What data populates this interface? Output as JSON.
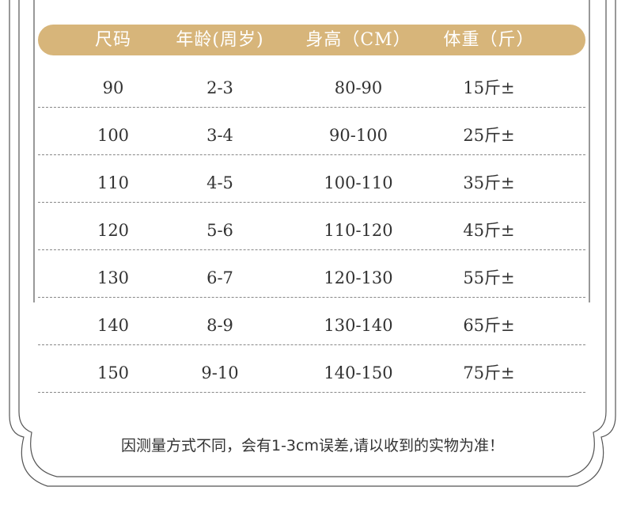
{
  "header": {
    "columns": [
      "尺码",
      "年龄(周岁)",
      "身高（CM）",
      "体重（斤）"
    ],
    "color": "#d7b57a"
  },
  "rows": [
    {
      "size": "90",
      "age": "2-3",
      "height": "80-90",
      "weight": "15斤±"
    },
    {
      "size": "100",
      "age": "3-4",
      "height": "90-100",
      "weight": "25斤±"
    },
    {
      "size": "110",
      "age": "4-5",
      "height": "100-110",
      "weight": "35斤±"
    },
    {
      "size": "120",
      "age": "5-6",
      "height": "110-120",
      "weight": "45斤±"
    },
    {
      "size": "130",
      "age": "6-7",
      "height": "120-130",
      "weight": "55斤±"
    },
    {
      "size": "140",
      "age": "8-9",
      "height": "130-140",
      "weight": "65斤±"
    },
    {
      "size": "150",
      "age": "9-10",
      "height": "140-150",
      "weight": "75斤±"
    }
  ],
  "note": "因测量方式不同，会有1-3cm误差,请以收到的实物为准！"
}
